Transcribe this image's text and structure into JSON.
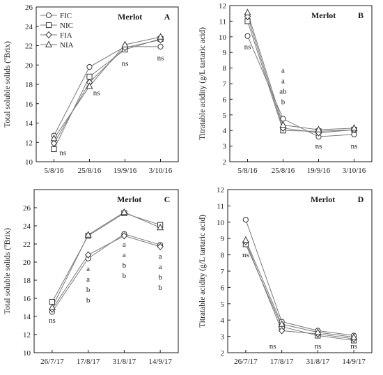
{
  "colors": {
    "axis": "#1a1a1a",
    "line": "#7a7a7a",
    "marker_stroke": "#333333",
    "marker_fill": "#ffffff"
  },
  "legend": {
    "placement": "top-left",
    "entries": [
      {
        "name": "FIC",
        "marker": "circle"
      },
      {
        "name": "NIC",
        "marker": "square"
      },
      {
        "name": "FIA",
        "marker": "diamond"
      },
      {
        "name": "NIA",
        "marker": "triangle"
      }
    ]
  },
  "chart_data": [
    {
      "id": "A",
      "type": "line",
      "panel_label": "A",
      "cultivar": "Merlot",
      "xlabel": "",
      "ylabel": "Total soluble solids (ºBrix)",
      "categories": [
        "5/8/16",
        "25/8/16",
        "19/9/16",
        "3/10/16"
      ],
      "ylim": [
        10,
        26
      ],
      "yticks": [
        10,
        12,
        14,
        16,
        18,
        20,
        22,
        24,
        26
      ],
      "grid": false,
      "series": [
        {
          "name": "FIC",
          "marker": "circle",
          "values": [
            12.7,
            19.8,
            21.9,
            21.9
          ]
        },
        {
          "name": "NIC",
          "marker": "square",
          "values": [
            11.3,
            18.8,
            21.6,
            22.7
          ]
        },
        {
          "name": "FIA",
          "marker": "diamond",
          "values": [
            11.9,
            18.2,
            21.8,
            22.6
          ]
        },
        {
          "name": "NIA",
          "marker": "triangle",
          "values": [
            12.4,
            17.8,
            22.1,
            22.9
          ]
        }
      ],
      "annotations": [
        {
          "category": "5/8/16",
          "lines": [
            "ns"
          ],
          "y": 10.7,
          "dx": 0.25
        },
        {
          "category": "25/8/16",
          "lines": [
            "ns"
          ],
          "y": 16.9,
          "dx": 0.2
        },
        {
          "category": "19/9/16",
          "lines": [
            "ns"
          ],
          "y": 19.9,
          "dx": 0
        },
        {
          "category": "3/10/16",
          "lines": [
            "ns"
          ],
          "y": 20.5,
          "dx": 0
        }
      ]
    },
    {
      "id": "B",
      "type": "line",
      "panel_label": "B",
      "cultivar": "Merlot",
      "xlabel": "",
      "ylabel": "Titratable  acidity (g/L tartaric acid)",
      "categories": [
        "5/8/16",
        "25/8/16",
        "19/9/16",
        "3/10/16"
      ],
      "ylim": [
        2,
        12
      ],
      "yticks": [
        2,
        3,
        4,
        5,
        6,
        7,
        8,
        9,
        10,
        11,
        12
      ],
      "grid": false,
      "series": [
        {
          "name": "FIC",
          "marker": "circle",
          "values": [
            10.05,
            4.75,
            3.6,
            3.75
          ]
        },
        {
          "name": "NIC",
          "marker": "square",
          "values": [
            11.0,
            4.0,
            3.95,
            4.05
          ]
        },
        {
          "name": "FIA",
          "marker": "diamond",
          "values": [
            11.3,
            4.15,
            3.85,
            4.05
          ]
        },
        {
          "name": "NIA",
          "marker": "triangle",
          "values": [
            11.55,
            4.35,
            4.05,
            4.15
          ]
        }
      ],
      "annotations": [
        {
          "category": "5/8/16",
          "lines": [
            "ns"
          ],
          "y": 9.2,
          "dx": 0
        },
        {
          "category": "25/8/16",
          "lines": [
            "a",
            "a",
            "ab",
            "b"
          ],
          "y": 7.7,
          "dx": 0
        },
        {
          "category": "19/9/16",
          "lines": [
            "ns"
          ],
          "y": 2.85,
          "dx": 0
        },
        {
          "category": "3/10/16",
          "lines": [
            "ns"
          ],
          "y": 2.85,
          "dx": 0
        }
      ]
    },
    {
      "id": "C",
      "type": "line",
      "panel_label": "C",
      "cultivar": "Merlot",
      "xlabel": "",
      "ylabel": "Total soluble solids (ºBrix)",
      "categories": [
        "26/7/17",
        "17/8/17",
        "31/8/17",
        "14/9/17"
      ],
      "ylim": [
        10,
        28
      ],
      "yticks": [
        10,
        12,
        14,
        16,
        18,
        20,
        22,
        24,
        26
      ],
      "grid": false,
      "series": [
        {
          "name": "FIC",
          "marker": "circle",
          "values": [
            14.5,
            20.4,
            23.1,
            21.9
          ]
        },
        {
          "name": "NIC",
          "marker": "square",
          "values": [
            15.6,
            22.9,
            25.4,
            24.1
          ]
        },
        {
          "name": "FIA",
          "marker": "diamond",
          "values": [
            14.8,
            20.8,
            22.9,
            21.7
          ]
        },
        {
          "name": "NIA",
          "marker": "triangle",
          "values": [
            15.0,
            23.0,
            25.5,
            23.8
          ]
        }
      ],
      "annotations": [
        {
          "category": "26/7/17",
          "lines": [
            "ns"
          ],
          "y": 13.3,
          "dx": 0
        },
        {
          "category": "17/8/17",
          "lines": [
            "a",
            "a",
            "b",
            "b"
          ],
          "y": 19.0,
          "dx": 0
        },
        {
          "category": "31/8/17",
          "lines": [
            "a",
            "a",
            "b",
            "b"
          ],
          "y": 21.7,
          "dx": 0
        },
        {
          "category": "14/9/17",
          "lines": [
            "a",
            "a",
            "b",
            "b"
          ],
          "y": 20.4,
          "dx": 0
        }
      ]
    },
    {
      "id": "D",
      "type": "line",
      "panel_label": "D",
      "cultivar": "Merlot",
      "xlabel": "",
      "ylabel": "Titratable  acidity (g/L tartaric acid)",
      "categories": [
        "26/7/17",
        "17/8/17",
        "31/8/17",
        "14/9/17"
      ],
      "ylim": [
        2,
        12
      ],
      "yticks": [
        2,
        3,
        4,
        5,
        6,
        7,
        8,
        9,
        10,
        11,
        12
      ],
      "grid": false,
      "series": [
        {
          "name": "FIC",
          "marker": "circle",
          "values": [
            10.15,
            3.9,
            3.35,
            3.05
          ]
        },
        {
          "name": "NIC",
          "marker": "square",
          "values": [
            8.65,
            3.6,
            3.05,
            2.75
          ]
        },
        {
          "name": "FIA",
          "marker": "diamond",
          "values": [
            8.8,
            3.35,
            3.15,
            2.85
          ]
        },
        {
          "name": "NIA",
          "marker": "triangle",
          "values": [
            8.9,
            3.75,
            3.25,
            2.95
          ]
        }
      ],
      "annotations": [
        {
          "category": "26/7/17",
          "lines": [
            "ns"
          ],
          "y": 7.85,
          "dx": 0
        },
        {
          "category": "17/8/17",
          "lines": [
            "ns"
          ],
          "y": 2.25,
          "dx": -0.25
        },
        {
          "category": "31/8/17",
          "lines": [
            "ns"
          ],
          "y": 2.25,
          "dx": 0
        },
        {
          "category": "14/9/17",
          "lines": [
            "ns"
          ],
          "y": 2.25,
          "dx": 0
        }
      ]
    }
  ]
}
